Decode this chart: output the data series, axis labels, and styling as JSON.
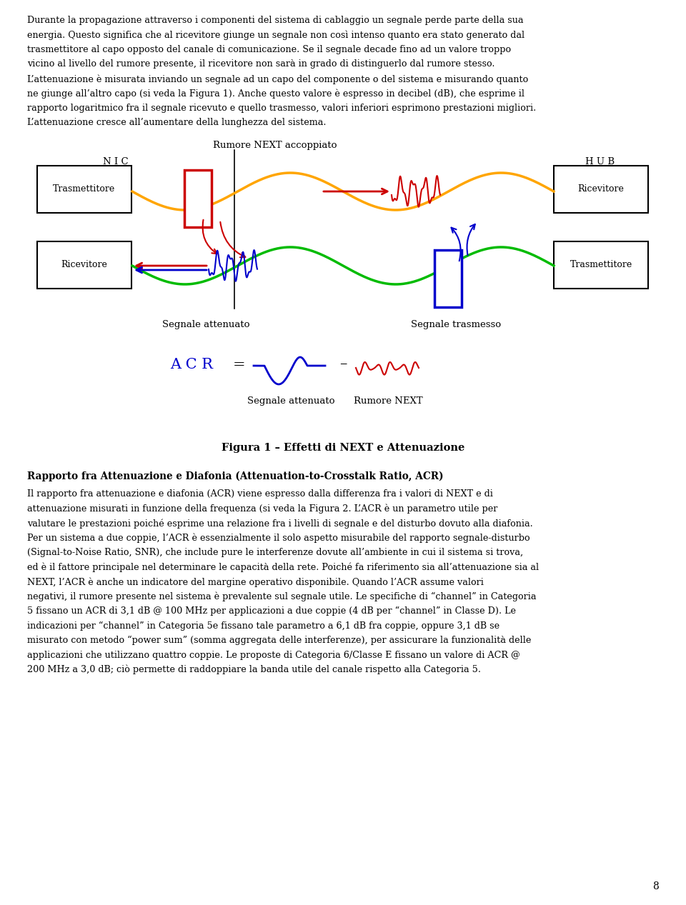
{
  "bg_color": "#ffffff",
  "page_number": "8",
  "text_color": "#000000",
  "orange_color": "#FFA500",
  "green_color": "#00BB00",
  "red_color": "#CC0000",
  "blue_color": "#0000CC",
  "lines1": [
    "Durante la propagazione attraverso i componenti del sistema di cablaggio un segnale perde parte della sua",
    "energia. Questo significa che al ricevitore giunge un segnale non così intenso quanto era stato generato dal",
    "trasmettitore al capo opposto del canale di comunicazione. Se il segnale decade fino ad un valore troppo",
    "vicino al livello del rumore presente, il ricevitore non sarà in grado di distinguerlo dal rumore stesso.",
    "L’attenuazione è misurata inviando un segnale ad un capo del componente o del sistema e misurando quanto",
    "ne giunge all’altro capo (si veda la Figura 1). Anche questo valore è espresso in decibel (dB), che esprime il",
    "rapporto logaritmico fra il segnale ricevuto e quello trasmesso, valori inferiori esprimono prestazioni migliori.",
    "L’attenuazione cresce all’aumentare della lunghezza del sistema."
  ],
  "lines2": [
    "Il rapporto fra attenuazione e diafonia (ACR) viene espresso dalla differenza fra i valori di NEXT e di",
    "attenuazione misurati in funzione della frequenza (si veda la Figura 2. L’ACR è un parametro utile per",
    "valutare le prestazioni poiché esprime una relazione fra i livelli di segnale e del disturbo dovuto alla diafonia.",
    "Per un sistema a due coppie, l’ACR è essenzialmente il solo aspetto misurabile del rapporto segnale-disturbo",
    "(Signal-to-Noise Ratio, SNR), che include pure le interferenze dovute all’ambiente in cui il sistema si trova,",
    "ed è il fattore principale nel determinare le capacità della rete. Poiché fa riferimento sia all’attenuazione sia al",
    "NEXT, l’ACR è anche un indicatore del margine operativo disponibile. Quando l’ACR assume valori",
    "negativi, il rumore presente nel sistema è prevalente sul segnale utile. Le specifiche di “channel” in Categoria",
    "5 fissano un ACR di 3,1 dB @ 100 MHz per applicazioni a due coppie (4 dB per “channel” in Classe D). Le",
    "indicazioni per “channel” in Categoria 5e fissano tale parametro a 6,1 dB fra coppie, oppure 3,1 dB se",
    "misurato con metodo “power sum” (somma aggregata delle interferenze), per assicurare la funzionalità delle",
    "applicazioni che utilizzano quattro coppie. Le proposte di Categoria 6/Classe E fissano un valore di ACR @",
    "200 MHz a 3,0 dB; ciò permette di raddoppiare la banda utile del canale rispetto alla Categoria 5."
  ],
  "label_rumore_next_top": "Rumore NEXT accoppiato",
  "label_nic": "N I C",
  "label_hub": "H U B",
  "label_trasmettitore_left": "Trasmettitore",
  "label_ricevitore_left": "Ricevitore",
  "label_ricevitore_right": "Ricevitore",
  "label_trasmettitore_right": "Trasmettitore",
  "label_segnale_attenuato": "Segnale attenuato",
  "label_segnale_trasmesso": "Segnale trasmesso",
  "label_acr": "A C R",
  "label_equals": "=",
  "label_minus": "–",
  "label_segnale_attenuato2": "Segnale attenuato",
  "label_rumore_next2": "Rumore NEXT",
  "figure_caption": "Figura 1 – Effetti di NEXT e Attenuazione",
  "heading_bold": "Rapporto fra Attenuazione e Diafonia (Attenuation-to-Crosstalk Ratio, ACR)"
}
